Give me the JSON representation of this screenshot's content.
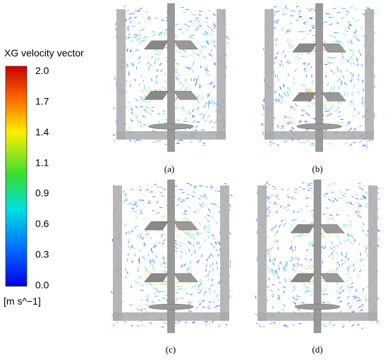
{
  "colorbar": {
    "title": "XG velocity vector",
    "ticks": [
      "2.0",
      "1.7",
      "1.4",
      "1.1",
      "0.9",
      "0.6",
      "0.3",
      "0.0"
    ],
    "unit": "[m s^−1]"
  },
  "panels": [
    {
      "label": "(a)"
    },
    {
      "label": "(b)"
    },
    {
      "label": "(c)"
    },
    {
      "label": "(d)"
    }
  ]
}
